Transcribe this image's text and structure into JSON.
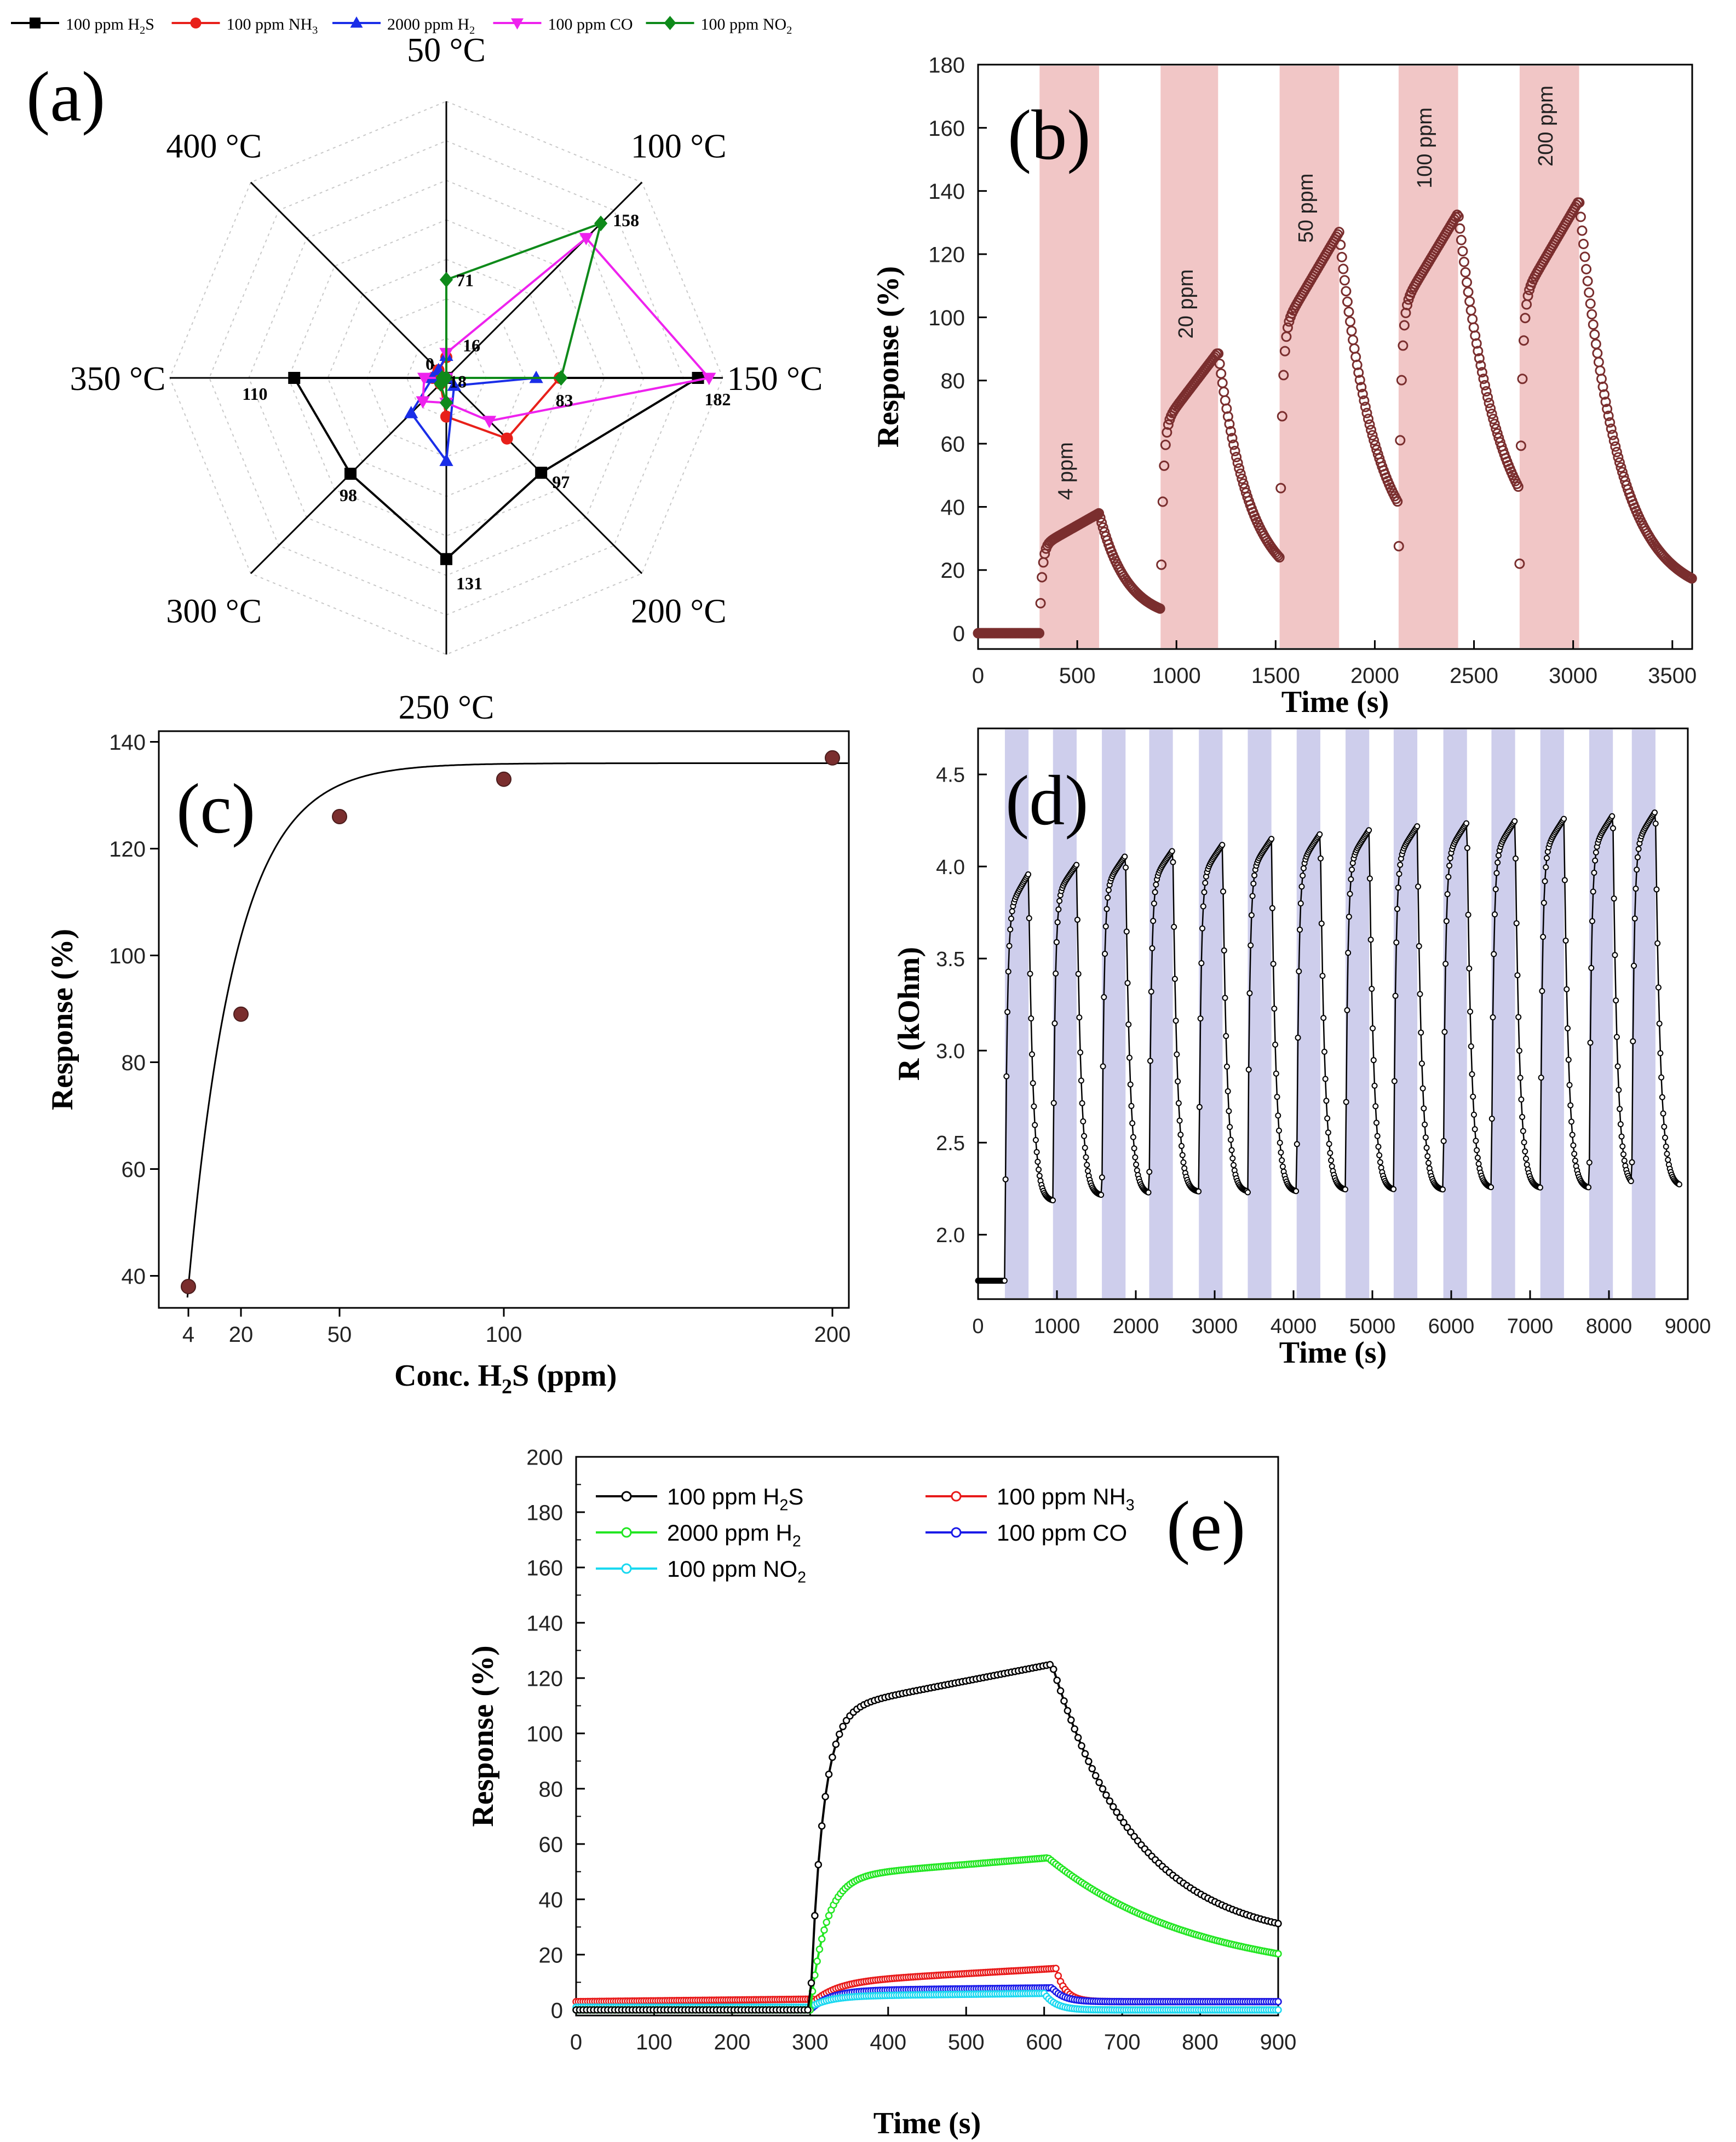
{
  "colors": {
    "h2s": "#000000",
    "nh3": "#e8201a",
    "h2": "#1a2ee8",
    "co": "#ee22ee",
    "no2": "#0e8a1a",
    "b_marker": "#7a2e2e",
    "b_band": "#eebcbc",
    "d_band": "#c9c9ea",
    "e_h2s": "#000000",
    "e_nh3": "#e81a1a",
    "e_h2": "#22e622",
    "e_co": "#1a1ae8",
    "e_no2": "#1ad8f0"
  },
  "chart_data": [
    {
      "id": "a",
      "type": "radar",
      "panel_label": "(a)",
      "legend": [
        {
          "key": "h2s",
          "name": "100 ppm H",
          "sub": "2",
          "tail": "S",
          "marker": "square"
        },
        {
          "key": "nh3",
          "name": "100 ppm NH",
          "sub": "3",
          "tail": "",
          "marker": "circle"
        },
        {
          "key": "h2",
          "name": "2000 ppm H",
          "sub": "2",
          "tail": "",
          "marker": "triangle-up"
        },
        {
          "key": "co",
          "name": "100 ppm CO",
          "sub": "",
          "tail": "",
          "marker": "triangle-down"
        },
        {
          "key": "no2",
          "name": "100 ppm NO",
          "sub": "2",
          "tail": "",
          "marker": "diamond"
        }
      ],
      "categories": [
        "50 °C",
        "100 °C",
        "150 °C",
        "200 °C",
        "250 °C",
        "300 °C",
        "350 °C",
        "400 °C"
      ],
      "rmax": 200,
      "series": [
        {
          "key": "h2s",
          "values": [
            0,
            0,
            182,
            97,
            131,
            98,
            110,
            0
          ]
        },
        {
          "key": "nh3",
          "values": [
            15,
            0,
            82,
            62,
            28,
            6,
            10,
            8
          ]
        },
        {
          "key": "h2",
          "values": [
            16,
            0,
            65,
            8,
            60,
            36,
            10,
            8
          ]
        },
        {
          "key": "co",
          "values": [
            18,
            143,
            190,
            44,
            18,
            24,
            16,
            0
          ]
        },
        {
          "key": "no2",
          "values": [
            71,
            158,
            83,
            0,
            18,
            6,
            3,
            0
          ]
        }
      ],
      "value_labels": [
        {
          "text": "71",
          "cat": 0,
          "series": "no2"
        },
        {
          "text": "158",
          "cat": 1,
          "series": "no2"
        },
        {
          "text": "182",
          "cat": 2,
          "series": "h2s"
        },
        {
          "text": "83",
          "cat": 2,
          "series": "no2"
        },
        {
          "text": "97",
          "cat": 3,
          "series": "h2s"
        },
        {
          "text": "131",
          "cat": 4,
          "series": "h2s"
        },
        {
          "text": "18",
          "cat": 4,
          "series": "no2"
        },
        {
          "text": "98",
          "cat": 5,
          "series": "h2s"
        },
        {
          "text": "110",
          "cat": 6,
          "series": "h2s"
        },
        {
          "text": "16",
          "cat": 0,
          "series": "h2"
        },
        {
          "text": "0",
          "cat": 7,
          "series": "h2s"
        }
      ]
    },
    {
      "id": "b",
      "type": "scatter",
      "panel_label": "(b)",
      "xlabel": "Time (s)",
      "ylabel": "Response (%)",
      "xlim": [
        0,
        3600
      ],
      "ylim": [
        -5,
        180
      ],
      "xticks": [
        0,
        500,
        1000,
        1500,
        2000,
        2500,
        3000,
        3500
      ],
      "yticks": [
        0,
        20,
        40,
        60,
        80,
        100,
        120,
        140,
        160,
        180
      ],
      "exposures": [
        {
          "label": "4 ppm",
          "start": 310,
          "end": 610,
          "baseline": 0,
          "peak": 38
        },
        {
          "label": "20 ppm",
          "start": 920,
          "end": 1210,
          "baseline": 4,
          "peak": 89
        },
        {
          "label": "50 ppm",
          "start": 1520,
          "end": 1820,
          "baseline": 13,
          "peak": 127
        },
        {
          "label": "100 ppm",
          "start": 2120,
          "end": 2420,
          "baseline": 21,
          "peak": 133
        },
        {
          "label": "200 ppm",
          "start": 2730,
          "end": 3030,
          "baseline": 22,
          "peak": 137
        }
      ],
      "end_value": 11
    },
    {
      "id": "c",
      "type": "scatter",
      "panel_label": "(c)",
      "xlabel": "Conc. H",
      "xlabel_sub": "2",
      "xlabel_tail": "S (ppm)",
      "ylabel": "Response (%)",
      "xlim": [
        -5,
        205
      ],
      "ylim": [
        34,
        142
      ],
      "xticks": [
        4,
        20,
        50,
        100,
        200
      ],
      "yticks": [
        40,
        60,
        80,
        100,
        120,
        140
      ],
      "points": [
        {
          "x": 4,
          "y": 38
        },
        {
          "x": 20,
          "y": 89
        },
        {
          "x": 50,
          "y": 126
        },
        {
          "x": 100,
          "y": 133
        },
        {
          "x": 200,
          "y": 137
        }
      ],
      "fit": {
        "model": "exponential",
        "plateau": 136,
        "amplitude": 98,
        "x0": 4,
        "tau": 14.5
      }
    },
    {
      "id": "d",
      "type": "scatter",
      "panel_label": "(d)",
      "xlabel": "Time (s)",
      "ylabel": "R (kOhm)",
      "xlim": [
        0,
        9000
      ],
      "ylim": [
        1.65,
        4.75
      ],
      "xticks": [
        0,
        1000,
        2000,
        3000,
        4000,
        5000,
        6000,
        7000,
        8000,
        9000
      ],
      "yticks": [
        2.0,
        2.5,
        3.0,
        3.5,
        4.0,
        4.5
      ],
      "baseline": 1.75,
      "cycles": [
        {
          "start": 340,
          "end": 640,
          "low": 2.16,
          "high": 3.96
        },
        {
          "start": 950,
          "end": 1250,
          "low": 2.18,
          "high": 4.01
        },
        {
          "start": 1570,
          "end": 1870,
          "low": 2.21,
          "high": 4.06
        },
        {
          "start": 2170,
          "end": 2470,
          "low": 2.22,
          "high": 4.09
        },
        {
          "start": 2800,
          "end": 3100,
          "low": 2.23,
          "high": 4.12
        },
        {
          "start": 3420,
          "end": 3720,
          "low": 2.23,
          "high": 4.15
        },
        {
          "start": 4040,
          "end": 4340,
          "low": 2.23,
          "high": 4.18
        },
        {
          "start": 4660,
          "end": 4960,
          "low": 2.24,
          "high": 4.2
        },
        {
          "start": 5270,
          "end": 5570,
          "low": 2.24,
          "high": 4.22
        },
        {
          "start": 5900,
          "end": 6200,
          "low": 2.24,
          "high": 4.24
        },
        {
          "start": 6510,
          "end": 6810,
          "low": 2.25,
          "high": 4.25
        },
        {
          "start": 7130,
          "end": 7430,
          "low": 2.25,
          "high": 4.26
        },
        {
          "start": 7750,
          "end": 8050,
          "low": 2.25,
          "high": 4.28
        },
        {
          "start": 8290,
          "end": 8590,
          "low": 2.26,
          "high": 4.3
        }
      ]
    },
    {
      "id": "e",
      "type": "line",
      "panel_label": "(e)",
      "xlabel": "Time (s)",
      "ylabel": "Response (%)",
      "xlim": [
        0,
        900
      ],
      "ylim": [
        -2,
        200
      ],
      "xticks": [
        0,
        100,
        200,
        300,
        400,
        500,
        600,
        700,
        800,
        900
      ],
      "yticks": [
        0,
        20,
        40,
        60,
        80,
        100,
        120,
        140,
        160,
        180,
        200
      ],
      "series": [
        {
          "key": "e_h2s",
          "name": "100 ppm H",
          "sub": "2",
          "tail": "S",
          "base": 0,
          "on": 300,
          "off": 610,
          "rise": 108,
          "peak": 125,
          "end": 24,
          "tau_on": 16,
          "tau_off": 110
        },
        {
          "key": "e_nh3",
          "name": "100 ppm NH",
          "sub": "3",
          "tail": "",
          "base": 3,
          "on": 305,
          "off": 615,
          "rise": 7,
          "peak": 12,
          "end": 3,
          "tau_on": 30,
          "tau_off": 12
        },
        {
          "key": "e_h2",
          "name": "2000 ppm H",
          "sub": "2",
          "tail": "",
          "base": 0,
          "on": 300,
          "off": 605,
          "rise": 48,
          "peak": 55,
          "end": 11,
          "tau_on": 20,
          "tau_off": 190
        },
        {
          "key": "e_co",
          "name": "100 ppm CO",
          "sub": "",
          "tail": "",
          "base": 0,
          "on": 300,
          "off": 610,
          "rise": 7,
          "peak": 8,
          "end": 3,
          "tau_on": 25,
          "tau_off": 15
        },
        {
          "key": "e_no2",
          "name": "100 ppm NO",
          "sub": "2",
          "tail": "",
          "base": 1,
          "on": 300,
          "off": 600,
          "rise": 4,
          "peak": 5,
          "end": 0,
          "tau_on": 25,
          "tau_off": 15
        }
      ]
    }
  ]
}
